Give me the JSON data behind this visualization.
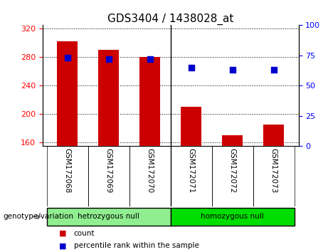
{
  "title": "GDS3404 / 1438028_at",
  "samples": [
    "GSM172068",
    "GSM172069",
    "GSM172070",
    "GSM172071",
    "GSM172072",
    "GSM172073"
  ],
  "counts": [
    302,
    290,
    280,
    210,
    170,
    185
  ],
  "percentiles": [
    73,
    72,
    72,
    65,
    63,
    63
  ],
  "ylim_left": [
    155,
    325
  ],
  "ylim_right": [
    0,
    100
  ],
  "yticks_left": [
    160,
    200,
    240,
    280,
    320
  ],
  "yticks_right": [
    0,
    25,
    50,
    75,
    100
  ],
  "bar_color": "#cc0000",
  "dot_color": "#0000cc",
  "bar_width": 0.5,
  "groups": [
    {
      "label": "hetrozygous null",
      "samples": [
        0,
        1,
        2
      ],
      "color": "#90ee90"
    },
    {
      "label": "homozygous null",
      "samples": [
        3,
        4,
        5
      ],
      "color": "#00dd00"
    }
  ],
  "genotype_label": "genotype/variation",
  "legend_items": [
    {
      "label": "count",
      "color": "#cc0000"
    },
    {
      "label": "percentile rank within the sample",
      "color": "#0000cc"
    }
  ],
  "grid_color": "black",
  "bg_xtick": "#c8c8c8",
  "title_fontsize": 11,
  "tick_fontsize": 8,
  "label_fontsize": 7.5
}
